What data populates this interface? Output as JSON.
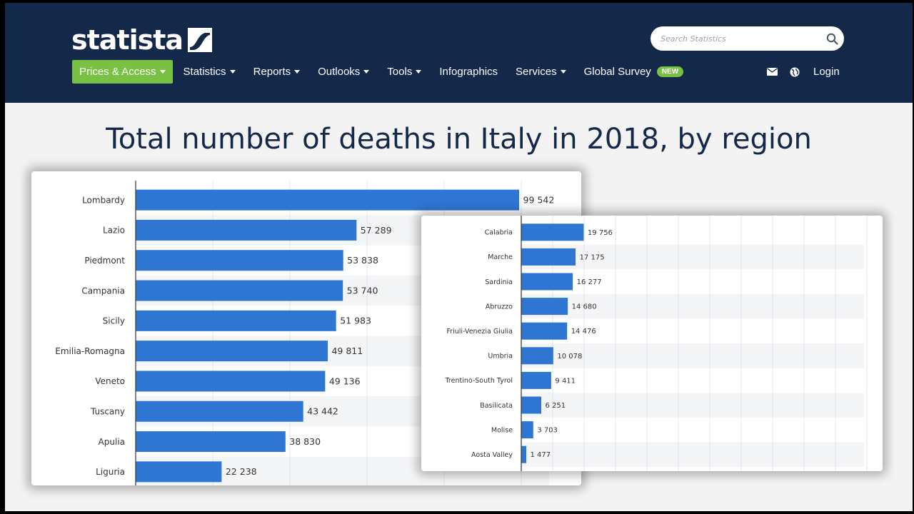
{
  "header": {
    "logo_text": "statista",
    "search_placeholder": "Search Statistics",
    "nav": [
      {
        "label": "Prices & Access",
        "caret": true,
        "primary": true
      },
      {
        "label": "Statistics",
        "caret": true
      },
      {
        "label": "Reports",
        "caret": true
      },
      {
        "label": "Outlooks",
        "caret": true
      },
      {
        "label": "Tools",
        "caret": true
      },
      {
        "label": "Infographics",
        "caret": false
      },
      {
        "label": "Services",
        "caret": true
      },
      {
        "label": "Global Survey",
        "caret": false,
        "badge": "NEW"
      }
    ],
    "login_label": "Login",
    "icons": [
      "envelope-icon",
      "globe-icon"
    ]
  },
  "colors": {
    "header_bg": "#14294a",
    "accent_green": "#79c143",
    "bar_blue": "#2f76d2",
    "title_color": "#14294a"
  },
  "page": {
    "title": "Total number of deaths in Italy in 2018, by region"
  },
  "chart_data": [
    {
      "type": "bar",
      "orientation": "horizontal",
      "categories": [
        "Lombardy",
        "Lazio",
        "Piedmont",
        "Campania",
        "Sicily",
        "Emilia-Romagna",
        "Veneto",
        "Tuscany",
        "Apulia",
        "Liguria"
      ],
      "values": [
        99542,
        57289,
        53838,
        53740,
        51983,
        49811,
        49136,
        43442,
        38830,
        22238
      ],
      "value_labels": [
        "99 542",
        "57 289",
        "53 838",
        "53 740",
        "51 983",
        "49 811",
        "49 136",
        "43 442",
        "38 830",
        "22 238"
      ],
      "xlim": [
        0,
        100000
      ],
      "grid": true
    },
    {
      "type": "bar",
      "orientation": "horizontal",
      "categories": [
        "Calabria",
        "Marche",
        "Sardinia",
        "Abruzzo",
        "Friuli-Venezia Giulia",
        "Umbria",
        "Trentino-South Tyrol",
        "Basilicata",
        "Molise",
        "Aosta Valley"
      ],
      "values": [
        19756,
        17175,
        16277,
        14680,
        14476,
        10078,
        9411,
        6251,
        3703,
        1477
      ],
      "value_labels": [
        "19 756",
        "17 175",
        "16 277",
        "14 680",
        "14 476",
        "10 078",
        "9 411",
        "6 251",
        "3 703",
        "1 477"
      ],
      "xlim": [
        0,
        100000
      ],
      "grid": true
    }
  ]
}
